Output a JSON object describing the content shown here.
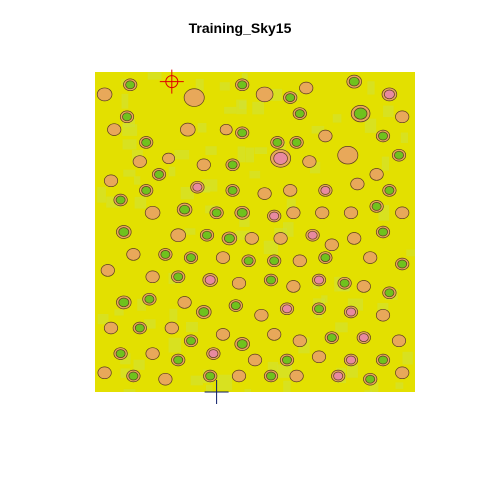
{
  "chart_data": {
    "type": "heatmap",
    "title": "Training_Sky15",
    "xlabel": "",
    "ylabel": "",
    "colors": {
      "background": "#e3e000",
      "light_patch": "#cfe23a",
      "orange": "#e8a85a",
      "pink": "#e88aa0",
      "green": "#6fc21d",
      "dark_green": "#3fa015",
      "contour": "#5a3a20",
      "red_marker": "#e00000",
      "blue_marker": "#0a1a66"
    },
    "markers": [
      {
        "kind": "red-crosshair",
        "x": 0.24,
        "y": 0.97
      },
      {
        "kind": "blue-crosshair",
        "x": 0.38,
        "y": 0.0
      }
    ],
    "blobs": [
      {
        "x": 0.03,
        "y": 0.93,
        "r": 0.022,
        "level": "orange"
      },
      {
        "x": 0.11,
        "y": 0.96,
        "r": 0.02,
        "level": "green"
      },
      {
        "x": 0.1,
        "y": 0.86,
        "r": 0.02,
        "level": "green"
      },
      {
        "x": 0.31,
        "y": 0.92,
        "r": 0.03,
        "level": "orange"
      },
      {
        "x": 0.46,
        "y": 0.96,
        "r": 0.02,
        "level": "green"
      },
      {
        "x": 0.53,
        "y": 0.93,
        "r": 0.025,
        "level": "orange"
      },
      {
        "x": 0.61,
        "y": 0.92,
        "r": 0.02,
        "level": "green"
      },
      {
        "x": 0.66,
        "y": 0.95,
        "r": 0.02,
        "level": "orange"
      },
      {
        "x": 0.64,
        "y": 0.87,
        "r": 0.02,
        "level": "green"
      },
      {
        "x": 0.81,
        "y": 0.97,
        "r": 0.022,
        "level": "green"
      },
      {
        "x": 0.83,
        "y": 0.87,
        "r": 0.028,
        "level": "green"
      },
      {
        "x": 0.92,
        "y": 0.93,
        "r": 0.022,
        "level": "pink"
      },
      {
        "x": 0.96,
        "y": 0.86,
        "r": 0.02,
        "level": "orange"
      },
      {
        "x": 0.9,
        "y": 0.8,
        "r": 0.02,
        "level": "green"
      },
      {
        "x": 0.57,
        "y": 0.78,
        "r": 0.02,
        "level": "green"
      },
      {
        "x": 0.63,
        "y": 0.78,
        "r": 0.02,
        "level": "green"
      },
      {
        "x": 0.72,
        "y": 0.8,
        "r": 0.02,
        "level": "orange"
      },
      {
        "x": 0.46,
        "y": 0.81,
        "r": 0.02,
        "level": "green"
      },
      {
        "x": 0.41,
        "y": 0.82,
        "r": 0.018,
        "level": "orange"
      },
      {
        "x": 0.29,
        "y": 0.82,
        "r": 0.022,
        "level": "orange"
      },
      {
        "x": 0.16,
        "y": 0.78,
        "r": 0.02,
        "level": "green"
      },
      {
        "x": 0.06,
        "y": 0.82,
        "r": 0.02,
        "level": "orange"
      },
      {
        "x": 0.58,
        "y": 0.73,
        "r": 0.03,
        "level": "pink"
      },
      {
        "x": 0.67,
        "y": 0.72,
        "r": 0.02,
        "level": "orange"
      },
      {
        "x": 0.79,
        "y": 0.74,
        "r": 0.03,
        "level": "orange"
      },
      {
        "x": 0.95,
        "y": 0.74,
        "r": 0.02,
        "level": "green"
      },
      {
        "x": 0.88,
        "y": 0.68,
        "r": 0.02,
        "level": "orange"
      },
      {
        "x": 0.34,
        "y": 0.71,
        "r": 0.02,
        "level": "orange"
      },
      {
        "x": 0.43,
        "y": 0.71,
        "r": 0.02,
        "level": "green"
      },
      {
        "x": 0.23,
        "y": 0.73,
        "r": 0.018,
        "level": "orange"
      },
      {
        "x": 0.14,
        "y": 0.72,
        "r": 0.02,
        "level": "orange"
      },
      {
        "x": 0.2,
        "y": 0.68,
        "r": 0.02,
        "level": "green"
      },
      {
        "x": 0.32,
        "y": 0.64,
        "r": 0.02,
        "level": "pink"
      },
      {
        "x": 0.43,
        "y": 0.63,
        "r": 0.02,
        "level": "green"
      },
      {
        "x": 0.53,
        "y": 0.62,
        "r": 0.02,
        "level": "orange"
      },
      {
        "x": 0.61,
        "y": 0.63,
        "r": 0.02,
        "level": "orange"
      },
      {
        "x": 0.72,
        "y": 0.63,
        "r": 0.02,
        "level": "pink"
      },
      {
        "x": 0.82,
        "y": 0.65,
        "r": 0.02,
        "level": "orange"
      },
      {
        "x": 0.92,
        "y": 0.63,
        "r": 0.02,
        "level": "green"
      },
      {
        "x": 0.16,
        "y": 0.63,
        "r": 0.02,
        "level": "green"
      },
      {
        "x": 0.05,
        "y": 0.66,
        "r": 0.02,
        "level": "orange"
      },
      {
        "x": 0.08,
        "y": 0.6,
        "r": 0.02,
        "level": "green"
      },
      {
        "x": 0.18,
        "y": 0.56,
        "r": 0.022,
        "level": "orange"
      },
      {
        "x": 0.28,
        "y": 0.57,
        "r": 0.022,
        "level": "green"
      },
      {
        "x": 0.38,
        "y": 0.56,
        "r": 0.02,
        "level": "green"
      },
      {
        "x": 0.46,
        "y": 0.56,
        "r": 0.022,
        "level": "green"
      },
      {
        "x": 0.56,
        "y": 0.55,
        "r": 0.02,
        "level": "pink"
      },
      {
        "x": 0.62,
        "y": 0.56,
        "r": 0.02,
        "level": "orange"
      },
      {
        "x": 0.71,
        "y": 0.56,
        "r": 0.02,
        "level": "orange"
      },
      {
        "x": 0.8,
        "y": 0.56,
        "r": 0.02,
        "level": "orange"
      },
      {
        "x": 0.88,
        "y": 0.58,
        "r": 0.02,
        "level": "green"
      },
      {
        "x": 0.96,
        "y": 0.56,
        "r": 0.02,
        "level": "orange"
      },
      {
        "x": 0.09,
        "y": 0.5,
        "r": 0.022,
        "level": "green"
      },
      {
        "x": 0.26,
        "y": 0.49,
        "r": 0.022,
        "level": "orange"
      },
      {
        "x": 0.35,
        "y": 0.49,
        "r": 0.02,
        "level": "green"
      },
      {
        "x": 0.42,
        "y": 0.48,
        "r": 0.022,
        "level": "green"
      },
      {
        "x": 0.49,
        "y": 0.48,
        "r": 0.02,
        "level": "orange"
      },
      {
        "x": 0.58,
        "y": 0.48,
        "r": 0.02,
        "level": "orange"
      },
      {
        "x": 0.68,
        "y": 0.49,
        "r": 0.02,
        "level": "pink"
      },
      {
        "x": 0.74,
        "y": 0.46,
        "r": 0.02,
        "level": "orange"
      },
      {
        "x": 0.81,
        "y": 0.48,
        "r": 0.02,
        "level": "orange"
      },
      {
        "x": 0.9,
        "y": 0.5,
        "r": 0.02,
        "level": "green"
      },
      {
        "x": 0.12,
        "y": 0.43,
        "r": 0.02,
        "level": "orange"
      },
      {
        "x": 0.22,
        "y": 0.43,
        "r": 0.02,
        "level": "green"
      },
      {
        "x": 0.3,
        "y": 0.42,
        "r": 0.02,
        "level": "green"
      },
      {
        "x": 0.4,
        "y": 0.42,
        "r": 0.02,
        "level": "orange"
      },
      {
        "x": 0.48,
        "y": 0.41,
        "r": 0.02,
        "level": "green"
      },
      {
        "x": 0.56,
        "y": 0.41,
        "r": 0.02,
        "level": "green"
      },
      {
        "x": 0.64,
        "y": 0.41,
        "r": 0.02,
        "level": "orange"
      },
      {
        "x": 0.72,
        "y": 0.42,
        "r": 0.02,
        "level": "green"
      },
      {
        "x": 0.86,
        "y": 0.42,
        "r": 0.02,
        "level": "orange"
      },
      {
        "x": 0.96,
        "y": 0.4,
        "r": 0.02,
        "level": "green"
      },
      {
        "x": 0.04,
        "y": 0.38,
        "r": 0.02,
        "level": "orange"
      },
      {
        "x": 0.18,
        "y": 0.36,
        "r": 0.02,
        "level": "orange"
      },
      {
        "x": 0.26,
        "y": 0.36,
        "r": 0.02,
        "level": "green"
      },
      {
        "x": 0.36,
        "y": 0.35,
        "r": 0.022,
        "level": "pink"
      },
      {
        "x": 0.45,
        "y": 0.34,
        "r": 0.02,
        "level": "orange"
      },
      {
        "x": 0.55,
        "y": 0.35,
        "r": 0.02,
        "level": "green"
      },
      {
        "x": 0.62,
        "y": 0.33,
        "r": 0.02,
        "level": "orange"
      },
      {
        "x": 0.7,
        "y": 0.35,
        "r": 0.02,
        "level": "pink"
      },
      {
        "x": 0.78,
        "y": 0.34,
        "r": 0.02,
        "level": "green"
      },
      {
        "x": 0.84,
        "y": 0.33,
        "r": 0.02,
        "level": "orange"
      },
      {
        "x": 0.92,
        "y": 0.31,
        "r": 0.02,
        "level": "green"
      },
      {
        "x": 0.09,
        "y": 0.28,
        "r": 0.022,
        "level": "green"
      },
      {
        "x": 0.17,
        "y": 0.29,
        "r": 0.02,
        "level": "green"
      },
      {
        "x": 0.28,
        "y": 0.28,
        "r": 0.02,
        "level": "orange"
      },
      {
        "x": 0.34,
        "y": 0.25,
        "r": 0.022,
        "level": "green"
      },
      {
        "x": 0.44,
        "y": 0.27,
        "r": 0.02,
        "level": "green"
      },
      {
        "x": 0.52,
        "y": 0.24,
        "r": 0.02,
        "level": "orange"
      },
      {
        "x": 0.6,
        "y": 0.26,
        "r": 0.02,
        "level": "pink"
      },
      {
        "x": 0.7,
        "y": 0.26,
        "r": 0.02,
        "level": "green"
      },
      {
        "x": 0.8,
        "y": 0.25,
        "r": 0.02,
        "level": "pink"
      },
      {
        "x": 0.9,
        "y": 0.24,
        "r": 0.02,
        "level": "orange"
      },
      {
        "x": 0.05,
        "y": 0.2,
        "r": 0.02,
        "level": "orange"
      },
      {
        "x": 0.14,
        "y": 0.2,
        "r": 0.02,
        "level": "green"
      },
      {
        "x": 0.24,
        "y": 0.2,
        "r": 0.02,
        "level": "orange"
      },
      {
        "x": 0.3,
        "y": 0.16,
        "r": 0.02,
        "level": "green"
      },
      {
        "x": 0.4,
        "y": 0.18,
        "r": 0.02,
        "level": "orange"
      },
      {
        "x": 0.46,
        "y": 0.15,
        "r": 0.022,
        "level": "green"
      },
      {
        "x": 0.56,
        "y": 0.18,
        "r": 0.02,
        "level": "orange"
      },
      {
        "x": 0.64,
        "y": 0.16,
        "r": 0.02,
        "level": "orange"
      },
      {
        "x": 0.74,
        "y": 0.17,
        "r": 0.02,
        "level": "green"
      },
      {
        "x": 0.84,
        "y": 0.17,
        "r": 0.02,
        "level": "pink"
      },
      {
        "x": 0.95,
        "y": 0.16,
        "r": 0.02,
        "level": "orange"
      },
      {
        "x": 0.08,
        "y": 0.12,
        "r": 0.02,
        "level": "green"
      },
      {
        "x": 0.18,
        "y": 0.12,
        "r": 0.02,
        "level": "orange"
      },
      {
        "x": 0.26,
        "y": 0.1,
        "r": 0.02,
        "level": "green"
      },
      {
        "x": 0.37,
        "y": 0.12,
        "r": 0.02,
        "level": "pink"
      },
      {
        "x": 0.5,
        "y": 0.1,
        "r": 0.02,
        "level": "orange"
      },
      {
        "x": 0.6,
        "y": 0.1,
        "r": 0.02,
        "level": "green"
      },
      {
        "x": 0.7,
        "y": 0.11,
        "r": 0.02,
        "level": "orange"
      },
      {
        "x": 0.8,
        "y": 0.1,
        "r": 0.02,
        "level": "pink"
      },
      {
        "x": 0.9,
        "y": 0.1,
        "r": 0.02,
        "level": "green"
      },
      {
        "x": 0.03,
        "y": 0.06,
        "r": 0.02,
        "level": "orange"
      },
      {
        "x": 0.12,
        "y": 0.05,
        "r": 0.02,
        "level": "green"
      },
      {
        "x": 0.22,
        "y": 0.04,
        "r": 0.02,
        "level": "orange"
      },
      {
        "x": 0.36,
        "y": 0.05,
        "r": 0.02,
        "level": "green"
      },
      {
        "x": 0.45,
        "y": 0.05,
        "r": 0.02,
        "level": "orange"
      },
      {
        "x": 0.55,
        "y": 0.05,
        "r": 0.02,
        "level": "green"
      },
      {
        "x": 0.63,
        "y": 0.05,
        "r": 0.02,
        "level": "orange"
      },
      {
        "x": 0.76,
        "y": 0.05,
        "r": 0.02,
        "level": "pink"
      },
      {
        "x": 0.86,
        "y": 0.04,
        "r": 0.02,
        "level": "green"
      },
      {
        "x": 0.96,
        "y": 0.06,
        "r": 0.02,
        "level": "orange"
      }
    ]
  }
}
